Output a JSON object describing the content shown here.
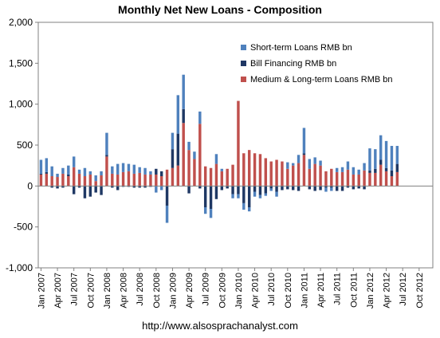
{
  "chart_data": {
    "type": "bar",
    "stacked": true,
    "title": "Monthly Net New Loans - Composition",
    "source": "http://www.alsosprachanalyst.com",
    "ylim": [
      -1000,
      2000
    ],
    "yticks": [
      -1000,
      -500,
      0,
      500,
      1000,
      1500,
      2000
    ],
    "ytick_labels": [
      "-1,000",
      "-500",
      "0",
      "500",
      "1,000",
      "1,500",
      "2,000"
    ],
    "grid": false,
    "legend_position": "top-right",
    "x": [
      "2007-01",
      "2007-02",
      "2007-03",
      "2007-04",
      "2007-05",
      "2007-06",
      "2007-07",
      "2007-08",
      "2007-09",
      "2007-10",
      "2007-11",
      "2007-12",
      "2008-01",
      "2008-02",
      "2008-03",
      "2008-04",
      "2008-05",
      "2008-06",
      "2008-07",
      "2008-08",
      "2008-09",
      "2008-10",
      "2008-11",
      "2008-12",
      "2009-01",
      "2009-02",
      "2009-03",
      "2009-04",
      "2009-05",
      "2009-06",
      "2009-07",
      "2009-08",
      "2009-09",
      "2009-10",
      "2009-11",
      "2009-12",
      "2010-01",
      "2010-02",
      "2010-03",
      "2010-04",
      "2010-05",
      "2010-06",
      "2010-07",
      "2010-08",
      "2010-09",
      "2010-10",
      "2010-11",
      "2010-12",
      "2011-01",
      "2011-02",
      "2011-03",
      "2011-04",
      "2011-05",
      "2011-06",
      "2011-07",
      "2011-08",
      "2011-09",
      "2011-10",
      "2011-11",
      "2011-12",
      "2012-01",
      "2012-02",
      "2012-03",
      "2012-04",
      "2012-05",
      "2012-06",
      "2012-07",
      "2012-08",
      "2012-09",
      "2012-10",
      "2012-11",
      "2012-12"
    ],
    "xtick_labels": [
      "Jan 2007",
      "Apr 2007",
      "Jul 2007",
      "Oct 2007",
      "Jan 2008",
      "Apr 2008",
      "Jul 2008",
      "Oct 2008",
      "Jan 2009",
      "Apr 2009",
      "Jul 2009",
      "Oct 2009",
      "Jan 2010",
      "Apr 2010",
      "Jul 2010",
      "Oct 2010",
      "Jan 2011",
      "Apr 2011",
      "Jul 2011",
      "Oct 2011",
      "Jan 2012",
      "Apr 2012",
      "Jul 2012",
      "Oct 2012"
    ],
    "series": [
      {
        "name": "Short-term Loans RMB bn",
        "color": "#4f81bd",
        "values": [
          170,
          170,
          120,
          40,
          70,
          110,
          130,
          50,
          100,
          40,
          70,
          50,
          270,
          90,
          130,
          110,
          90,
          110,
          70,
          80,
          40,
          -80,
          -50,
          -210,
          200,
          470,
          420,
          100,
          90,
          150,
          -80,
          -110,
          120,
          30,
          0,
          -50,
          -50,
          -80,
          -50,
          -60,
          -40,
          -30,
          -30,
          -60,
          0,
          80,
          30,
          100,
          310,
          120,
          80,
          60,
          -50,
          -40,
          50,
          60,
          100,
          90,
          60,
          90,
          270,
          240,
          300,
          330,
          300,
          220,
          0,
          0,
          0,
          0,
          0,
          0
        ]
      },
      {
        "name": "Bill Financing RMB bn",
        "color": "#1f3864",
        "values": [
          10,
          20,
          -20,
          -30,
          -20,
          20,
          -100,
          -20,
          -150,
          -130,
          -80,
          -110,
          20,
          -20,
          -50,
          -10,
          -10,
          -20,
          -20,
          -20,
          -10,
          70,
          60,
          -240,
          230,
          390,
          170,
          -90,
          0,
          -30,
          -260,
          -280,
          -160,
          -50,
          -30,
          -100,
          -100,
          -210,
          -260,
          -70,
          -110,
          -90,
          -30,
          -70,
          -50,
          -40,
          -50,
          -60,
          20,
          -40,
          -60,
          -50,
          -20,
          -20,
          -60,
          -60,
          -20,
          -40,
          -30,
          -40,
          30,
          50,
          60,
          40,
          70,
          100,
          0,
          0,
          0,
          0,
          0,
          0
        ]
      },
      {
        "name": "Medium & Long-term Loans RMB bn",
        "color": "#c0504d",
        "values": [
          140,
          150,
          120,
          110,
          150,
          120,
          230,
          150,
          120,
          140,
          60,
          130,
          360,
          150,
          140,
          170,
          180,
          150,
          160,
          140,
          140,
          140,
          120,
          200,
          220,
          250,
          770,
          440,
          330,
          760,
          240,
          220,
          270,
          180,
          210,
          260,
          1040,
          400,
          440,
          400,
          390,
          340,
          300,
          320,
          300,
          210,
          250,
          280,
          380,
          210,
          270,
          250,
          180,
          210,
          170,
          170,
          200,
          140,
          140,
          190,
          160,
          160,
          260,
          180,
          120,
          170,
          0,
          0,
          0,
          0,
          0,
          0
        ]
      }
    ]
  }
}
